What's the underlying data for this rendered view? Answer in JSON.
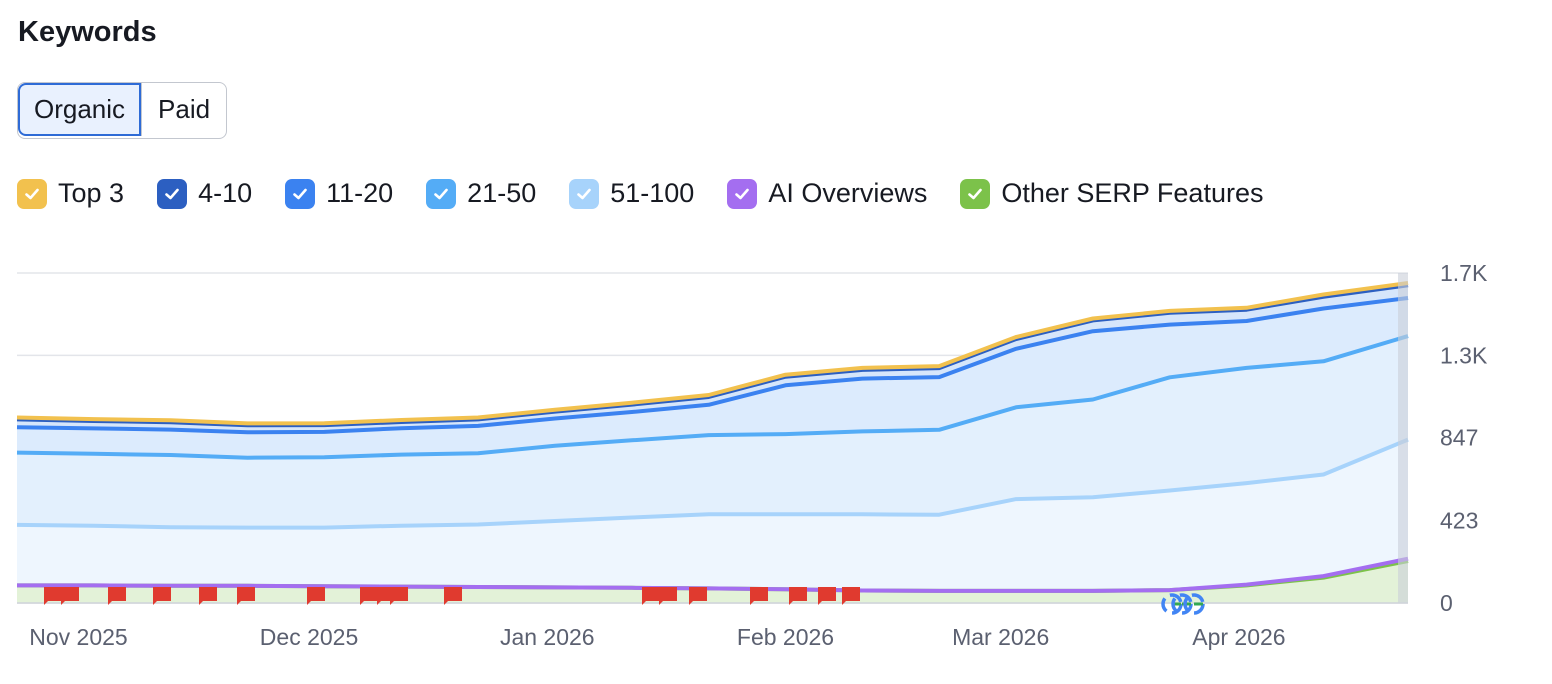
{
  "header": {
    "title": "Keywords"
  },
  "toggle": {
    "options": [
      "Organic",
      "Paid"
    ],
    "selected": "Organic"
  },
  "legend": [
    {
      "label": "Top 3",
      "color": "#f2c14e"
    },
    {
      "label": "4-10",
      "color": "#2c5fc1"
    },
    {
      "label": "11-20",
      "color": "#3b82f0"
    },
    {
      "label": "21-50",
      "color": "#54acf6"
    },
    {
      "label": "51-100",
      "color": "#a7d3fb"
    },
    {
      "label": "AI Overviews",
      "color": "#a46ef0"
    },
    {
      "label": "Other SERP Features",
      "color": "#7cc24a"
    }
  ],
  "chart_data": {
    "type": "area",
    "title": "",
    "x_range": [
      "2025-10-24",
      "2026-04-23"
    ],
    "x_ticks": [
      "Nov 2025",
      "Dec 2025",
      "Jan 2026",
      "Feb 2026",
      "Mar 2026",
      "Apr 2026"
    ],
    "y_ticks": [
      "0",
      "423",
      "847",
      "1.3K",
      "1.7K"
    ],
    "ylim": [
      0,
      1690
    ],
    "stacked": true,
    "x": [
      "2025-10-24",
      "2025-11-03",
      "2025-11-13",
      "2025-11-23",
      "2025-12-03",
      "2025-12-13",
      "2025-12-23",
      "2026-01-02",
      "2026-01-12",
      "2026-01-22",
      "2026-02-01",
      "2026-02-11",
      "2026-02-21",
      "2026-03-03",
      "2026-03-13",
      "2026-03-23",
      "2026-04-02",
      "2026-04-12",
      "2026-04-23"
    ],
    "series": [
      {
        "name": "Other SERP Features",
        "values": [
          90,
          90,
          88,
          88,
          86,
          84,
          82,
          80,
          78,
          75,
          70,
          64,
          62,
          62,
          62,
          66,
          90,
          130,
          215
        ]
      },
      {
        "name": "AI Overviews",
        "values": [
          0,
          0,
          0,
          0,
          0,
          0,
          0,
          0,
          0,
          0,
          0,
          0,
          0,
          0,
          0,
          0,
          4,
          8,
          12
        ]
      },
      {
        "name": "51-100",
        "values": [
          310,
          306,
          300,
          298,
          300,
          312,
          320,
          340,
          360,
          380,
          385,
          390,
          390,
          470,
          480,
          510,
          520,
          520,
          610
        ]
      },
      {
        "name": "21-50",
        "values": [
          370,
          368,
          370,
          358,
          360,
          364,
          365,
          385,
          395,
          405,
          410,
          425,
          435,
          470,
          500,
          580,
          590,
          580,
          530
        ]
      },
      {
        "name": "11-20",
        "values": [
          130,
          130,
          130,
          130,
          130,
          135,
          140,
          140,
          145,
          155,
          250,
          270,
          270,
          300,
          350,
          270,
          240,
          270,
          195
        ]
      },
      {
        "name": "4-10",
        "values": [
          40,
          38,
          38,
          36,
          35,
          32,
          33,
          35,
          38,
          40,
          44,
          45,
          46,
          50,
          55,
          60,
          58,
          60,
          65
        ]
      },
      {
        "name": "Top 3",
        "values": [
          10,
          10,
          10,
          10,
          10,
          10,
          10,
          10,
          10,
          10,
          10,
          10,
          10,
          10,
          10,
          10,
          10,
          12,
          12
        ]
      }
    ],
    "annotations": {
      "event_flag_count": 20,
      "google_update_markers": 3
    }
  }
}
